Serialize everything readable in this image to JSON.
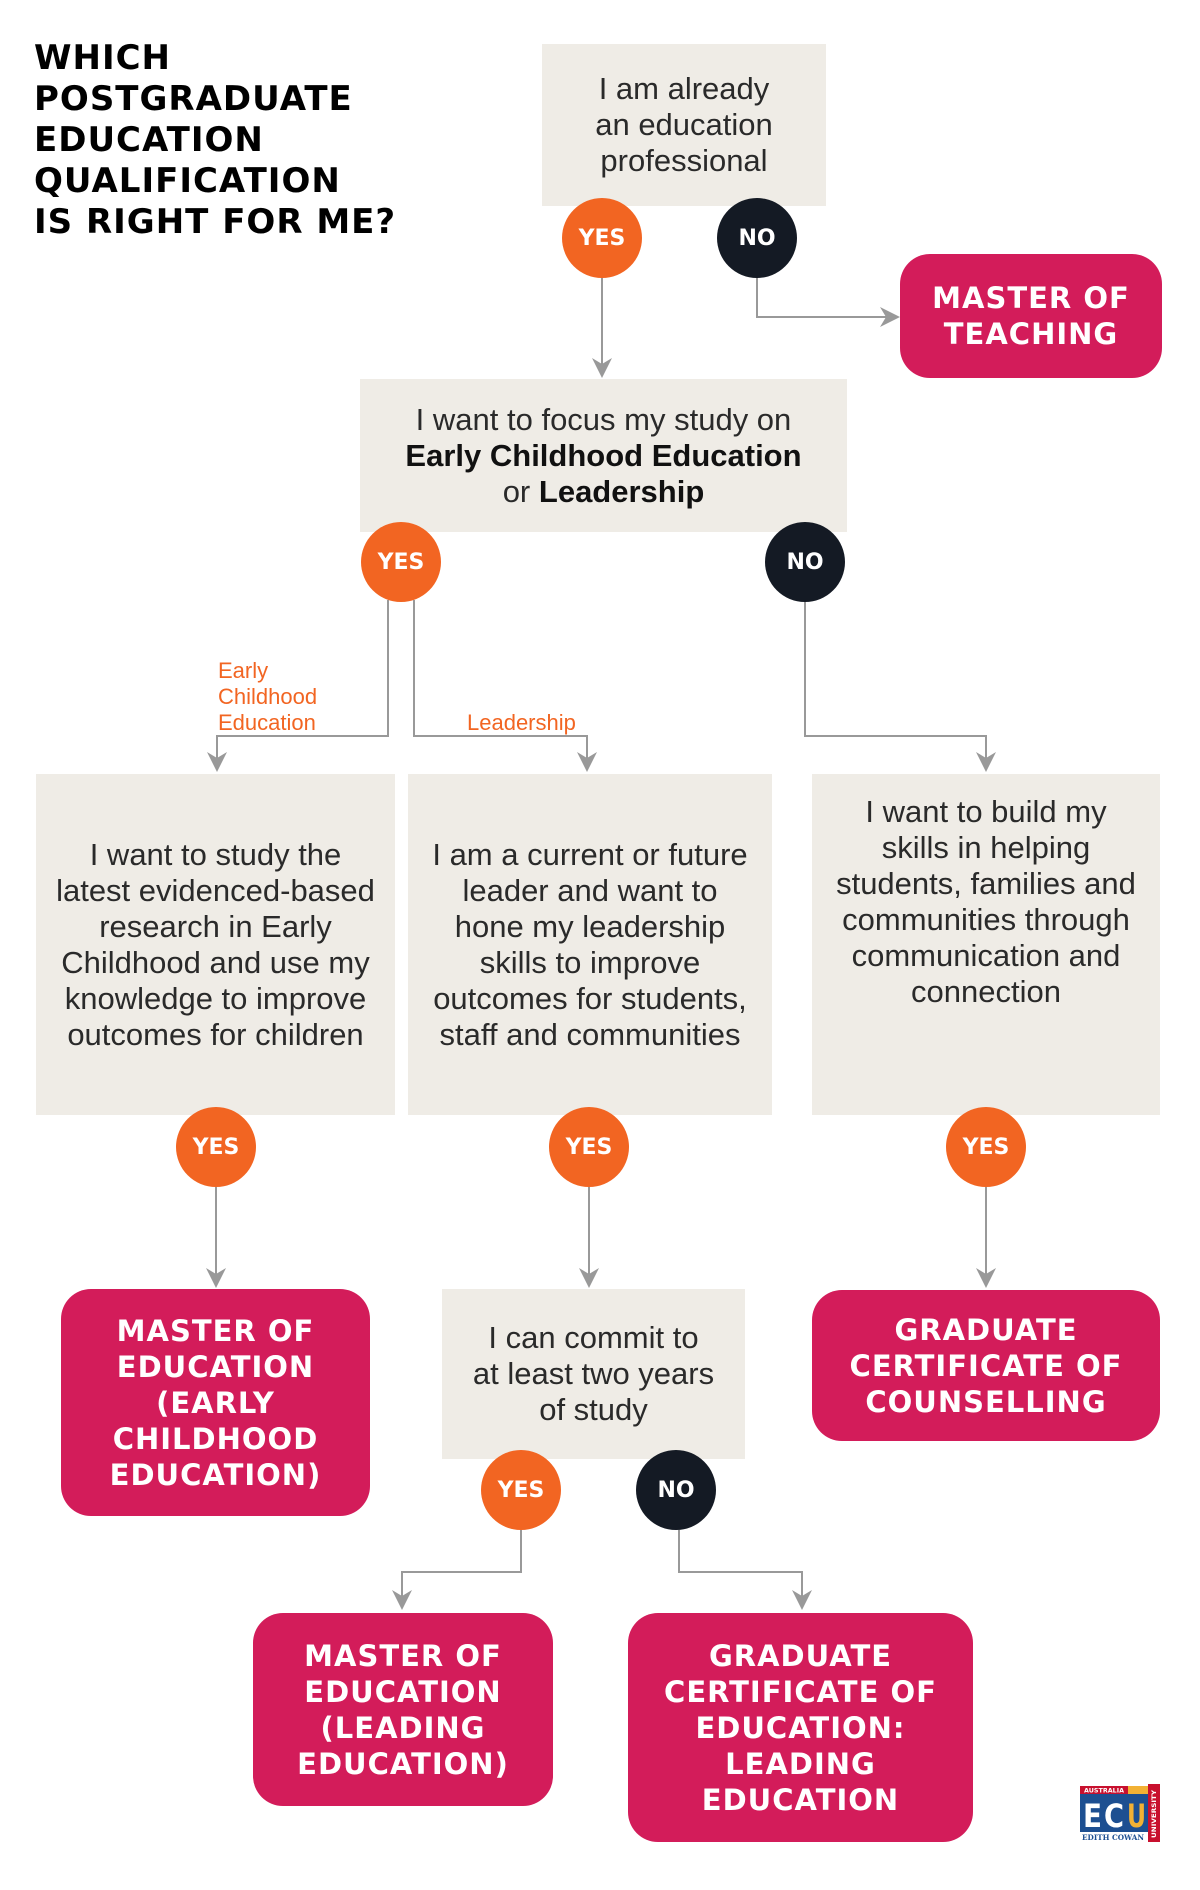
{
  "title": [
    "WHICH",
    "POSTGRADUATE",
    "EDUCATION",
    "QUALIFICATION",
    "IS RIGHT FOR ME?"
  ],
  "answers": {
    "yes": "YES",
    "no": "NO"
  },
  "questions": {
    "q1": [
      "I am already",
      "an education",
      "professional"
    ],
    "q2": {
      "line1": "I want to focus my study on",
      "bold1": "Early Childhood Education",
      "or": "or",
      "bold2": "Leadership"
    },
    "q3": "I want to study the latest evidenced-based research in Early Childhood and use my knowledge to improve outcomes for children",
    "q4": "I am a current or future leader and want to hone my leadership skills to improve outcomes for students, staff and communities",
    "q5": "I want to build my skills in helping students, families and communities through communication and connection",
    "q6": "I can commit to at least two years of study"
  },
  "branch_labels": {
    "early": [
      "Early",
      "Childhood",
      "Education"
    ],
    "leadership": "Leadership"
  },
  "results": {
    "teaching": "MASTER OF TEACHING",
    "early": "MASTER OF EDUCATION (EARLY CHILDHOOD EDUCATION)",
    "counselling": "GRADUATE CERTIFICATE OF COUNSELLING",
    "leading": "MASTER OF EDUCATION (LEADING EDUCATION)",
    "gradcert": "GRADUATE CERTIFICATE OF EDUCATION: LEADING EDUCATION"
  },
  "logo": {
    "text": "ECU",
    "top": "AUSTRALIA",
    "bottom": "EDITH COWAN",
    "side": "UNIVERSITY"
  },
  "colors": {
    "yes": "#f26522",
    "no": "#141a24",
    "result": "#d31c5a",
    "question": "#efece6",
    "connector": "#999999"
  }
}
